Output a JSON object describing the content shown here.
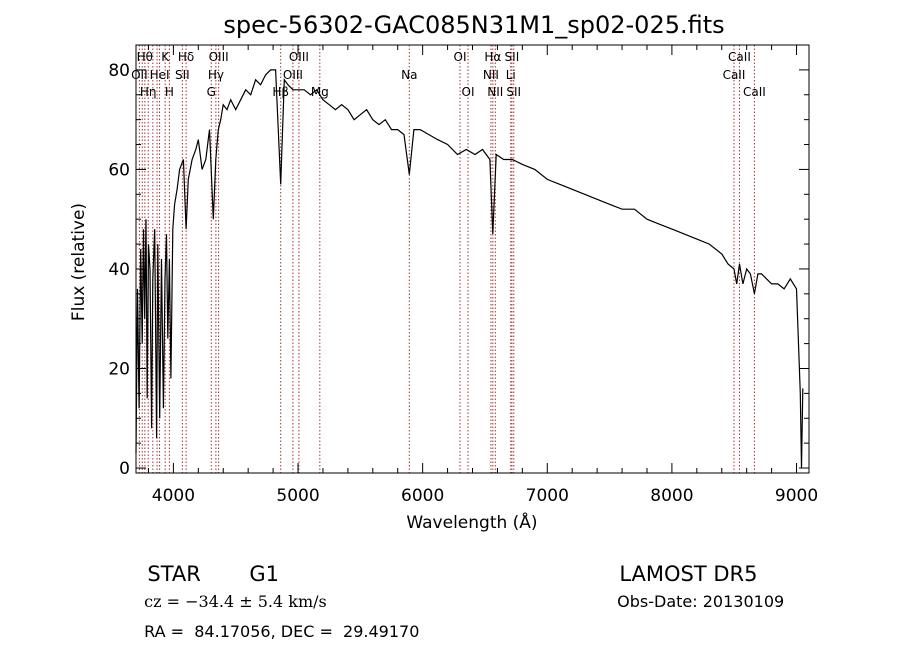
{
  "chart_data": {
    "type": "line",
    "title": "spec-56302-GAC085N31M1_sp02-025.fits",
    "xlabel": "Wavelength (Å)",
    "ylabel": "Flux (relative)",
    "xlim": [
      3700,
      9100
    ],
    "ylim": [
      -1,
      85
    ],
    "xticks": [
      4000,
      5000,
      6000,
      7000,
      8000,
      9000
    ],
    "yticks": [
      0,
      20,
      40,
      60,
      80
    ],
    "grid": false,
    "series": [
      {
        "x": [
          3700,
          3712,
          3725,
          3738,
          3750,
          3760,
          3770,
          3780,
          3790,
          3800,
          3812,
          3825,
          3835,
          3850,
          3865,
          3875,
          3890,
          3905,
          3920,
          3933,
          3945,
          3955,
          3968,
          3980,
          3995,
          4010,
          4030,
          4050,
          4080,
          4102,
          4120,
          4150,
          4180,
          4200,
          4230,
          4260,
          4290,
          4320,
          4340,
          4360,
          4380,
          4400,
          4430,
          4460,
          4500,
          4540,
          4580,
          4620,
          4660,
          4700,
          4740,
          4780,
          4820,
          4861,
          4890,
          4920,
          4960,
          5000,
          5050,
          5100,
          5150,
          5200,
          5250,
          5300,
          5350,
          5400,
          5450,
          5500,
          5550,
          5600,
          5650,
          5700,
          5750,
          5800,
          5850,
          5893,
          5930,
          5980,
          6050,
          6120,
          6200,
          6280,
          6350,
          6420,
          6480,
          6540,
          6563,
          6590,
          6650,
          6720,
          6800,
          6900,
          7000,
          7100,
          7200,
          7300,
          7400,
          7500,
          7600,
          7700,
          7800,
          7900,
          8000,
          8100,
          8200,
          8300,
          8400,
          8450,
          8498,
          8520,
          8542,
          8570,
          8600,
          8630,
          8662,
          8690,
          8720,
          8760,
          8800,
          8850,
          8900,
          8950,
          9000,
          9030,
          9040,
          9050
        ],
        "y": [
          3,
          36,
          12,
          44,
          25,
          48,
          30,
          50,
          14,
          45,
          40,
          8,
          38,
          48,
          6,
          45,
          10,
          42,
          12,
          38,
          47,
          26,
          42,
          18,
          48,
          53,
          56,
          60,
          62,
          48,
          58,
          62,
          64,
          66,
          60,
          62,
          68,
          50,
          62,
          68,
          70,
          73,
          72,
          74,
          72,
          74,
          76,
          75,
          78,
          77,
          79,
          80,
          80,
          57,
          78,
          77,
          76,
          76,
          76,
          75,
          76,
          74,
          73,
          72,
          73,
          72,
          70,
          71,
          72,
          70,
          69,
          70,
          68,
          68,
          67,
          59,
          68,
          68,
          67,
          66,
          65,
          63,
          64,
          63,
          64,
          62,
          47,
          63,
          62,
          62,
          61,
          60,
          58,
          57,
          56,
          55,
          54,
          53,
          52,
          52,
          50,
          49,
          48,
          47,
          46,
          45,
          43,
          41,
          40,
          37,
          41,
          37,
          40,
          39,
          35,
          39,
          39,
          38,
          37,
          37,
          36,
          38,
          36,
          15,
          0,
          16
        ]
      }
    ],
    "spectral_lines": [
      {
        "wl": 3727,
        "label": "OII",
        "row": 2
      },
      {
        "wl": 3750,
        "label": "",
        "row": 0
      },
      {
        "wl": 3771,
        "label": "Hθ",
        "row": 1
      },
      {
        "wl": 3798,
        "label": "Hη",
        "row": 3
      },
      {
        "wl": 3835,
        "label": "",
        "row": 0
      },
      {
        "wl": 3869,
        "label": "",
        "row": 0
      },
      {
        "wl": 3889,
        "label": "HeI",
        "row": 2
      },
      {
        "wl": 3934,
        "label": "K",
        "row": 1
      },
      {
        "wl": 3968,
        "label": "H",
        "row": 3
      },
      {
        "wl": 4072,
        "label": "SII",
        "row": 2
      },
      {
        "wl": 4102,
        "label": "Hδ",
        "row": 1
      },
      {
        "wl": 4304,
        "label": "G",
        "row": 3
      },
      {
        "wl": 4341,
        "label": "Hγ",
        "row": 2
      },
      {
        "wl": 4363,
        "label": "OIII",
        "row": 1
      },
      {
        "wl": 4861,
        "label": "Hβ",
        "row": 3
      },
      {
        "wl": 4959,
        "label": "OIII",
        "row": 2
      },
      {
        "wl": 5007,
        "label": "OIII",
        "row": 1
      },
      {
        "wl": 5175,
        "label": "Mg",
        "row": 3
      },
      {
        "wl": 5893,
        "label": "Na",
        "row": 2
      },
      {
        "wl": 6300,
        "label": "OI",
        "row": 1
      },
      {
        "wl": 6364,
        "label": "OI",
        "row": 3
      },
      {
        "wl": 6548,
        "label": "NII",
        "row": 2
      },
      {
        "wl": 6563,
        "label": "Hα",
        "row": 1
      },
      {
        "wl": 6583,
        "label": "NII",
        "row": 3
      },
      {
        "wl": 6707,
        "label": "Li",
        "row": 2
      },
      {
        "wl": 6716,
        "label": "SII",
        "row": 1
      },
      {
        "wl": 6731,
        "label": "SII",
        "row": 3
      },
      {
        "wl": 8498,
        "label": "CaII",
        "row": 2
      },
      {
        "wl": 8542,
        "label": "CaII",
        "row": 1
      },
      {
        "wl": 8662,
        "label": "CaII",
        "row": 3
      }
    ],
    "colors": {
      "spectrum": "#000000",
      "lines": "#a83232",
      "axes": "#000000"
    }
  },
  "info": {
    "object_class": "STAR",
    "subclass": "G1",
    "survey": "LAMOST DR5",
    "redshift": "cz = −34.4 ± 5.4 km/s",
    "obs_date": "Obs-Date: 20130109",
    "coords": "RA =  84.17056, DEC =  29.49170"
  }
}
